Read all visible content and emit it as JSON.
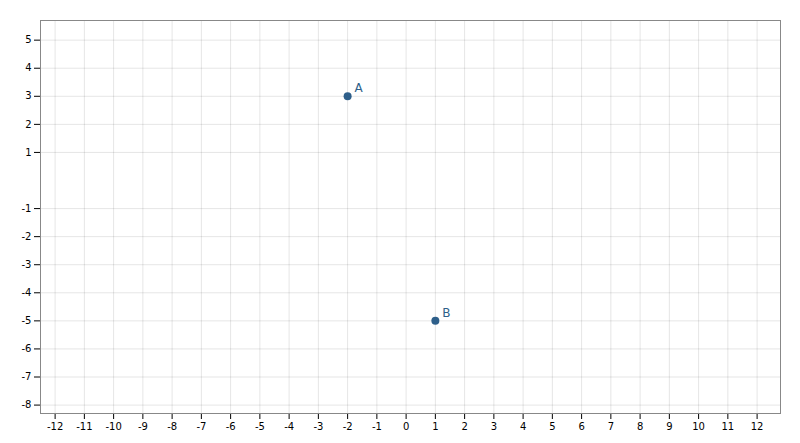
{
  "chart_data": {
    "type": "scatter",
    "x": [
      -2,
      1
    ],
    "y": [
      3,
      -5
    ],
    "labels": [
      "A",
      "B"
    ],
    "color": "#2e5f8a",
    "xlim": [
      -12.5,
      12.8
    ],
    "ylim": [
      -8.3,
      5.7
    ],
    "xticks": [
      -12,
      -11,
      -10,
      -9,
      -8,
      -7,
      -6,
      -5,
      -4,
      -3,
      -2,
      -1,
      0,
      1,
      2,
      3,
      4,
      5,
      6,
      7,
      8,
      9,
      10,
      11,
      12
    ],
    "yticks": [
      -8,
      -7,
      -6,
      -5,
      -4,
      -3,
      -2,
      -1,
      1,
      2,
      3,
      4,
      5
    ],
    "grid": true
  }
}
